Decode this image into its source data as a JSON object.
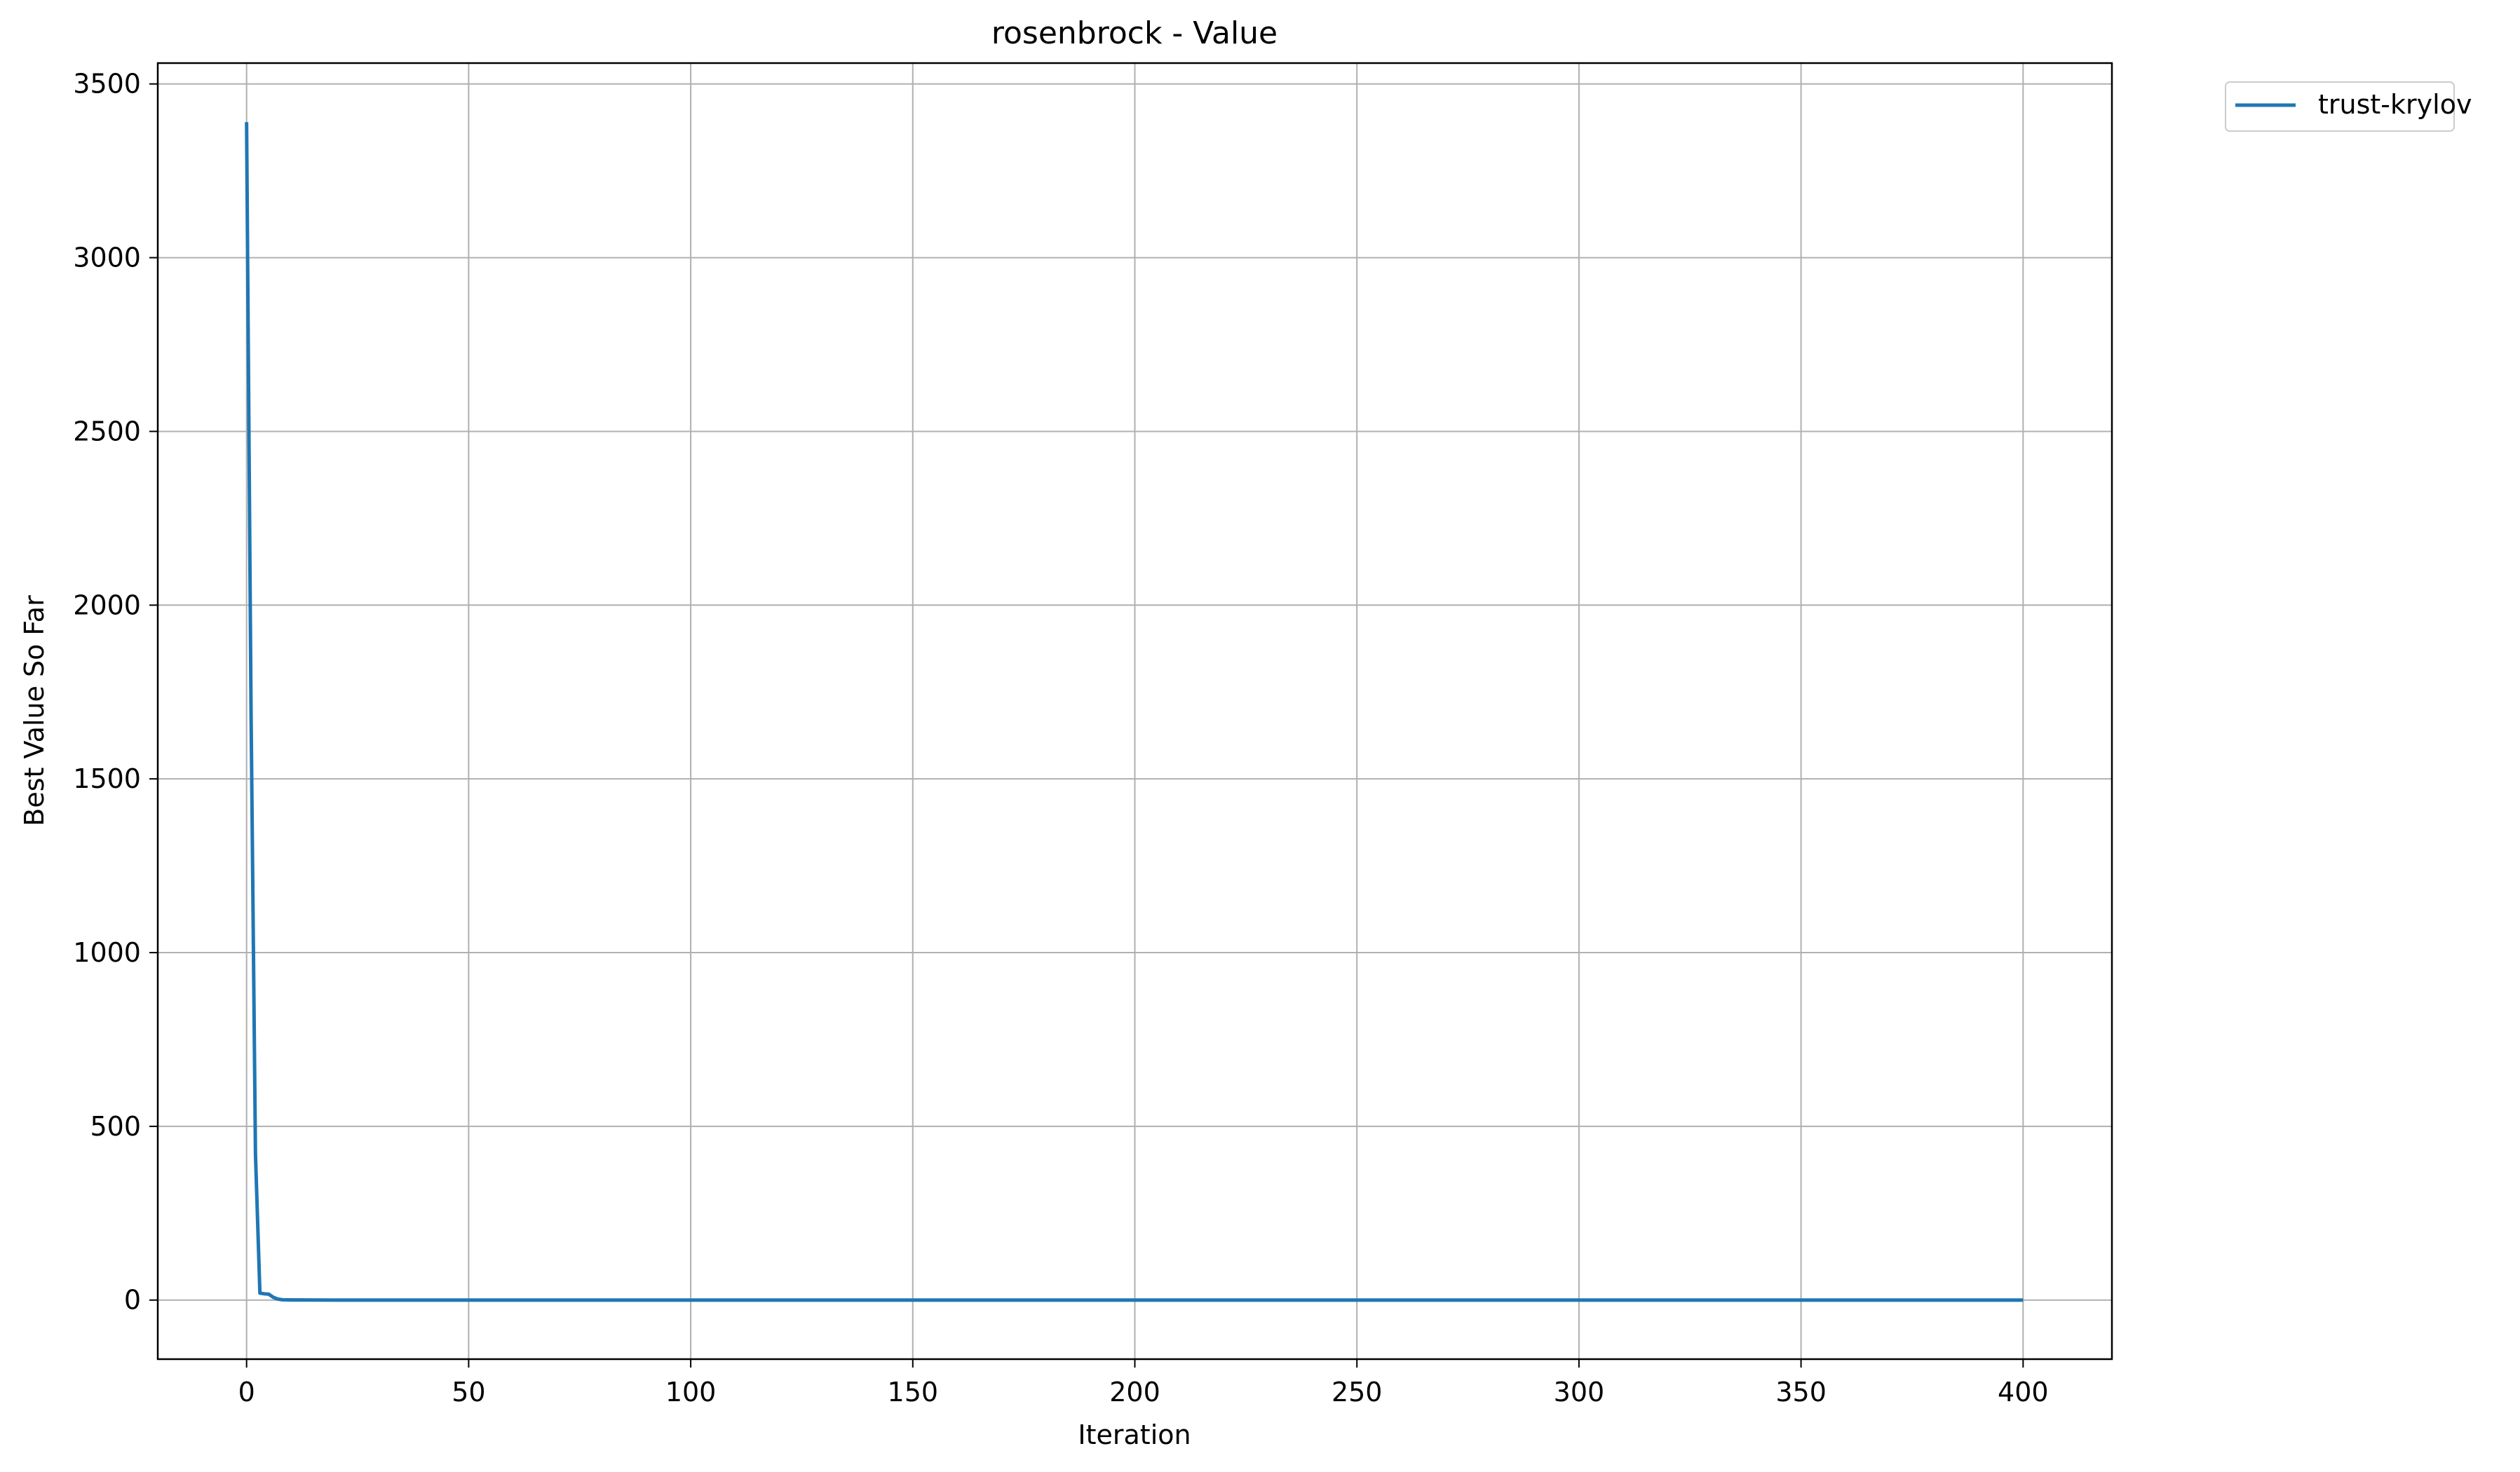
{
  "chart_data": {
    "type": "line",
    "title": "rosenbrock - Value",
    "xlabel": "Iteration",
    "ylabel": "Best Value So Far",
    "xlim": [
      -20,
      420
    ],
    "ylim": [
      -170,
      3560
    ],
    "xticks": [
      0,
      50,
      100,
      150,
      200,
      250,
      300,
      350,
      400
    ],
    "yticks": [
      0,
      500,
      1000,
      1500,
      2000,
      2500,
      3000,
      3500
    ],
    "xtick_labels": [
      "0",
      "50",
      "100",
      "150",
      "200",
      "250",
      "300",
      "350",
      "400"
    ],
    "ytick_labels": [
      "0",
      "500",
      "1000",
      "1500",
      "2000",
      "2500",
      "3000",
      "3500"
    ],
    "grid": true,
    "legend_position": "outside-top-right",
    "series": [
      {
        "name": "trust-krylov",
        "color": "#1f77b4",
        "x": [
          0,
          1,
          2,
          3,
          4,
          5,
          6,
          7,
          8,
          10,
          15,
          20,
          50,
          100,
          150,
          200,
          250,
          300,
          350,
          400
        ],
        "y": [
          3390,
          1700,
          420,
          20,
          18,
          17,
          8,
          3,
          1,
          0.5,
          0.2,
          0,
          0,
          0,
          0,
          0,
          0,
          0,
          0,
          0
        ]
      }
    ]
  }
}
